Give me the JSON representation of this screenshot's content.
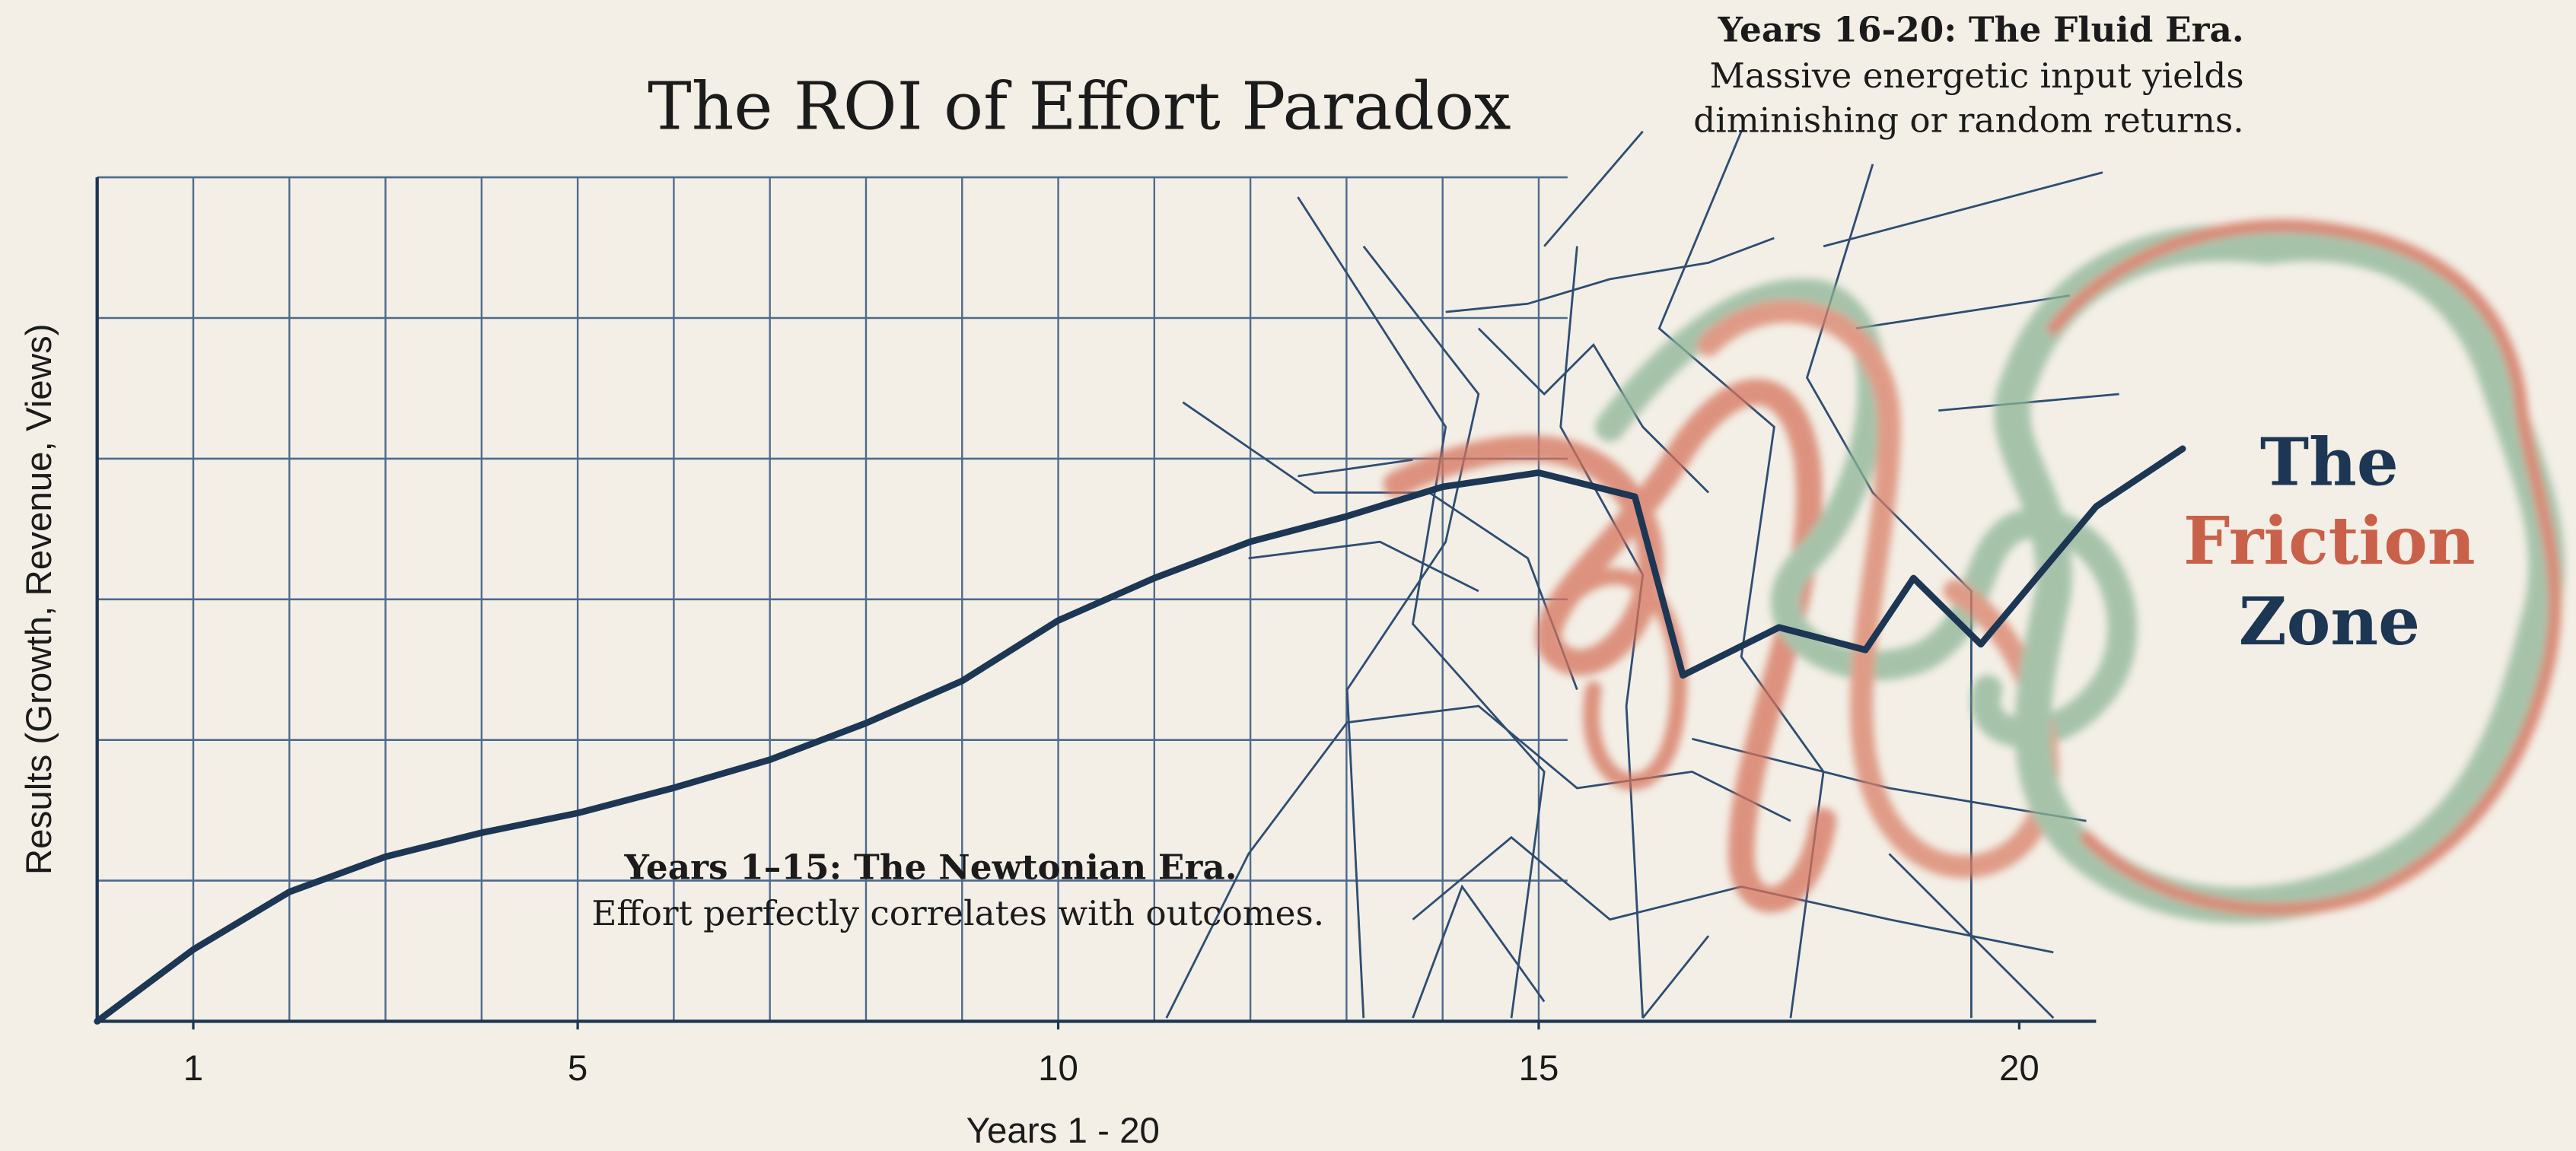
{
  "chart_data": {
    "type": "line",
    "title": "The ROI of Effort Paradox",
    "x_label": "Years 1 - 20",
    "y_label": "Results (Growth, Revenue, Views)",
    "x": [
      0,
      1,
      2,
      3,
      4,
      5,
      6,
      7,
      8,
      9,
      10,
      11,
      12,
      13,
      14,
      15,
      16,
      16.5,
      17.5,
      18.4,
      18.9,
      19.6,
      20.8,
      21.7
    ],
    "series": [
      {
        "color": "#1c3654",
        "values": [
          0,
          0.51,
          0.92,
          1.17,
          1.34,
          1.48,
          1.66,
          1.86,
          2.12,
          2.42,
          2.85,
          3.15,
          3.41,
          3.59,
          3.8,
          3.9,
          3.73,
          2.46,
          2.8,
          2.64,
          3.15,
          2.68,
          3.66,
          4.07
        ]
      }
    ],
    "xlim": [
      0,
      20.8
    ],
    "xticks": [
      1,
      5,
      10,
      15,
      20
    ],
    "ylim": [
      0,
      6
    ],
    "yticks": [
      1,
      2,
      3,
      4,
      5,
      6
    ],
    "grid": true,
    "annotations": [
      {
        "heading": "Years 1–15: The Newtonian Era.",
        "lines": [
          "Effort perfectly correlates with outcomes."
        ]
      },
      {
        "heading": "Years 16-20: The Fluid Era.",
        "lines": [
          "Massive energetic input yields",
          "diminishing or random returns."
        ]
      }
    ],
    "zone_label": [
      "The",
      "Friction",
      "Zone"
    ]
  }
}
